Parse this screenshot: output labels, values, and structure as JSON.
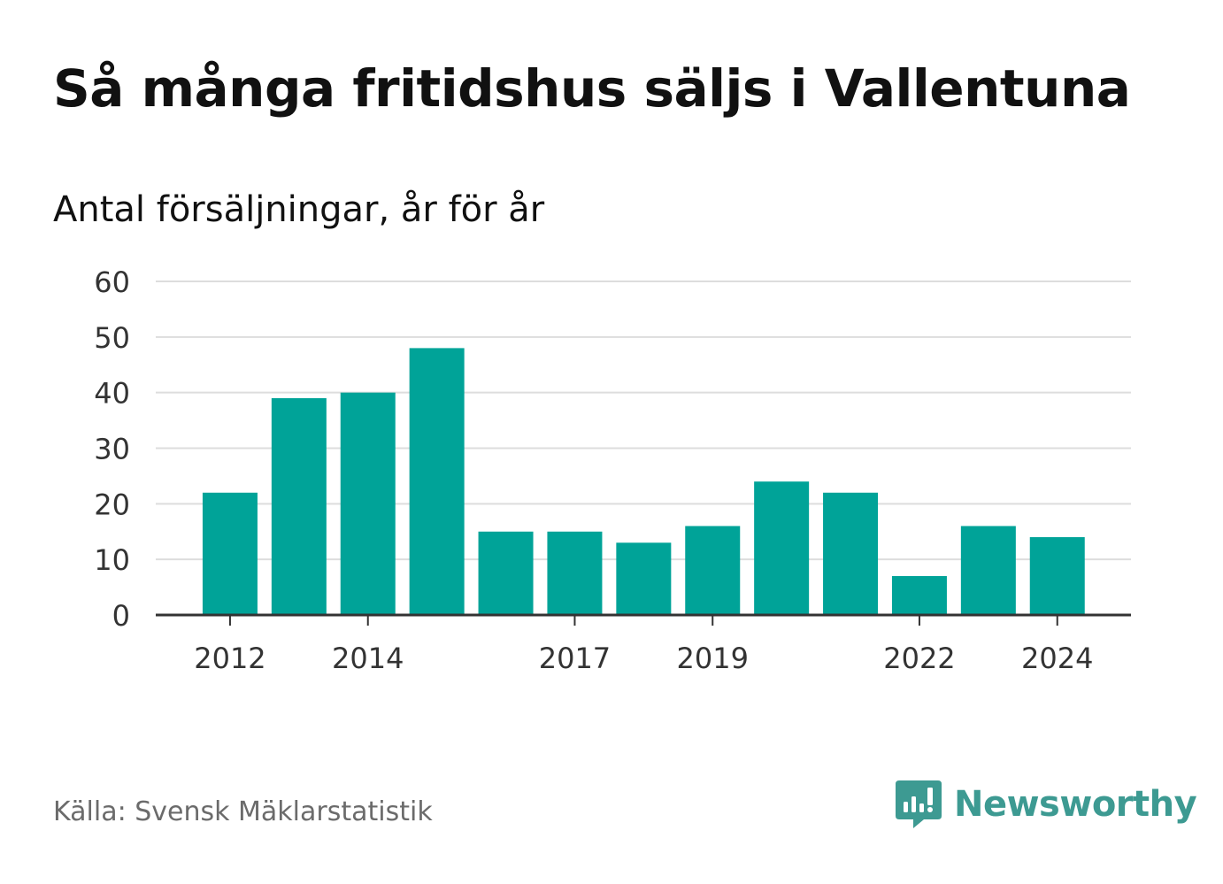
{
  "title": "Så många fritidshus säljs i Vallentuna",
  "subtitle": "Antal försäljningar, år för år",
  "source": "Källa: Svensk Mäklarstatistik",
  "brand": {
    "name": "Newsworthy",
    "icon": "newsworthy-logo-icon",
    "color": "#3d9a92"
  },
  "chart_data": {
    "type": "bar",
    "categories": [
      "2012",
      "2013",
      "2014",
      "2015",
      "2016",
      "2017",
      "2018",
      "2019",
      "2020",
      "2021",
      "2022",
      "2023",
      "2024"
    ],
    "values": [
      22,
      39,
      40,
      48,
      15,
      15,
      13,
      16,
      24,
      22,
      7,
      16,
      14
    ],
    "x_tick_labels": [
      "2012",
      "2014",
      "2017",
      "2019",
      "2022",
      "2024"
    ],
    "y_ticks": [
      0,
      10,
      20,
      30,
      40,
      50,
      60
    ],
    "ylim": [
      0,
      60
    ],
    "grid": true,
    "bar_color": "#00a398",
    "xlabel": "",
    "ylabel": ""
  }
}
